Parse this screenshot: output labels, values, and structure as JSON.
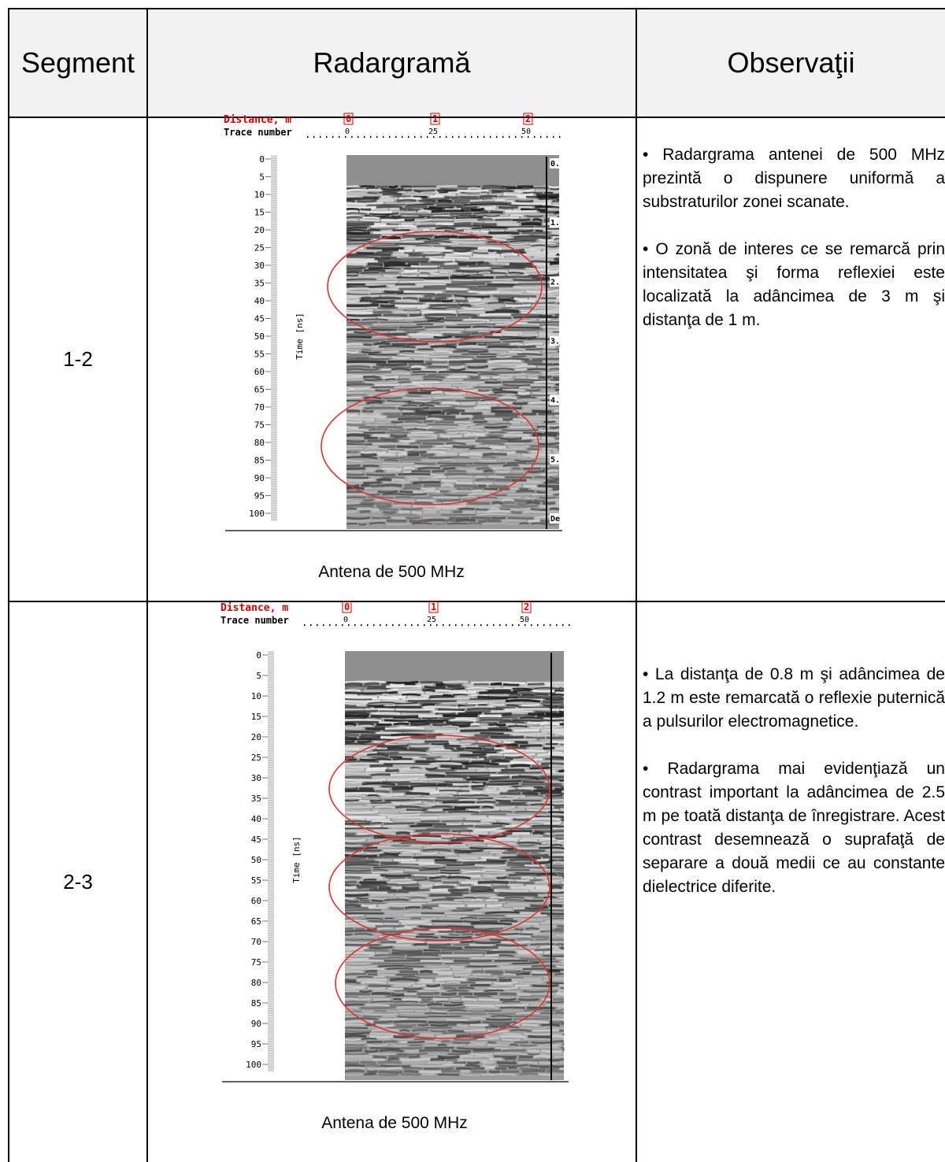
{
  "table": {
    "headers": {
      "segment": "Segment",
      "radargram": "Radargramă",
      "observations": "Observaţii"
    },
    "rows": [
      {
        "segment": "1-2",
        "caption": "Antena de 500 MHz",
        "observations": [
          "• Radargrama antenei de 500 MHz prezintă o dispunere uniformă a substraturilor zonei scanate.",
          "• O zonă de interes ce se remarcă prin intensitatea şi forma reflexiei este localizată la adâncimea de 3 m şi distanţa de 1 m."
        ]
      },
      {
        "segment": "2-3",
        "caption": "Antena de 500 MHz",
        "observations": [
          "• La distanţa de 0.8 m şi adâncimea de 1.2 m este remarcată o reflexie puternică a pulsurilor electromagnetice.",
          " • Radargrama mai evidenţiază un contrast important la adâncimea de 2.5 m pe toată distanţa de înregistrare. Acest contrast desemnează o suprafaţă de separare a două medii ce au constante dielectrice diferite."
        ]
      }
    ]
  },
  "radargram": {
    "distance_label": "Distance, m",
    "trace_label": "Trace number",
    "time_label": "Time [ns]",
    "distance_ticks": [
      "0",
      "1",
      "2"
    ],
    "trace_ticks": [
      "0",
      "25",
      "50"
    ],
    "time_ticks": [
      "0",
      "5",
      "10",
      "15",
      "20",
      "25",
      "30",
      "35",
      "40",
      "45",
      "50",
      "55",
      "60",
      "65",
      "70",
      "75",
      "80",
      "85",
      "90",
      "95",
      "100"
    ],
    "right_ticks_1": [
      "0.",
      "1.",
      "2.",
      "3.",
      "4.",
      "5.",
      "De"
    ],
    "colors": {
      "label_red": "#d40000",
      "ellipse": "#e0322e"
    }
  }
}
